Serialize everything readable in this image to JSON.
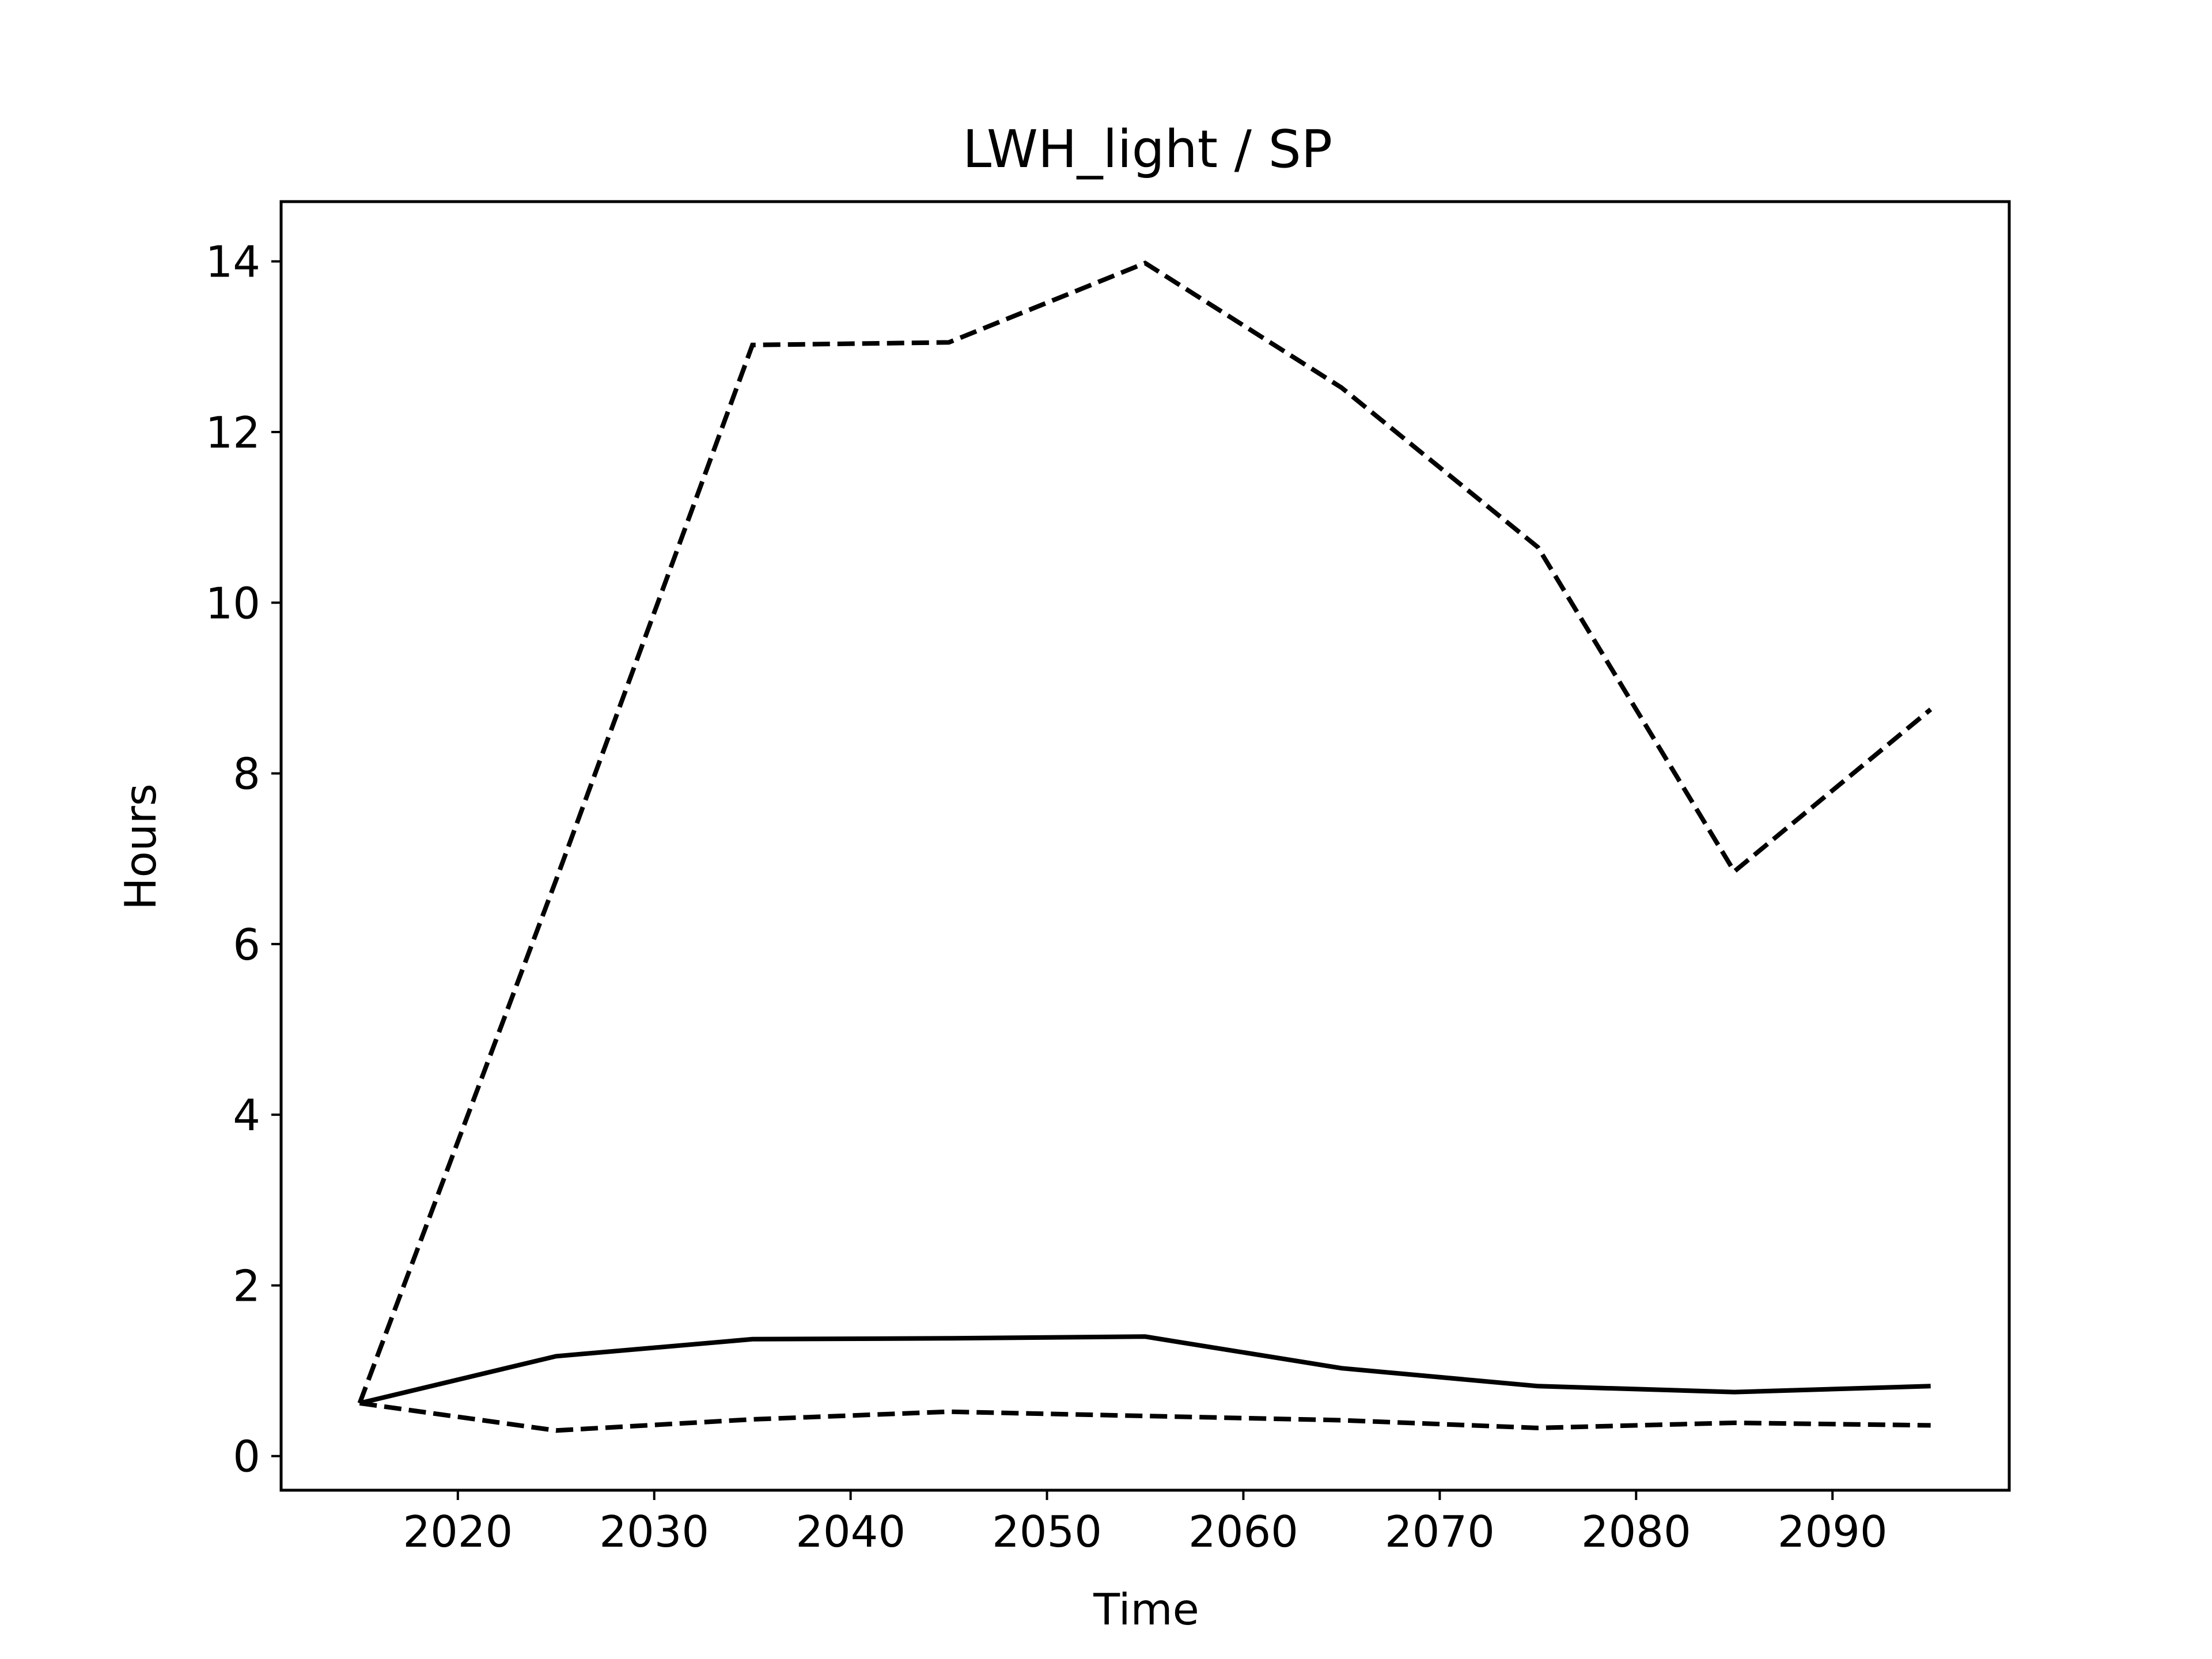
{
  "chart_data": {
    "type": "line",
    "title": "LWH_light / SP",
    "xlabel": "Time",
    "ylabel": "Hours",
    "x": [
      2015,
      2025,
      2035,
      2045,
      2055,
      2065,
      2075,
      2085,
      2095
    ],
    "xlim": [
      2011,
      2099
    ],
    "ylim": [
      -0.4,
      14.7
    ],
    "xticks": [
      2020,
      2030,
      2040,
      2050,
      2060,
      2070,
      2080,
      2090
    ],
    "yticks": [
      0,
      2,
      4,
      6,
      8,
      10,
      12,
      14
    ],
    "grid": false,
    "series": [
      {
        "style": "dashed",
        "color": "#000000",
        "values": [
          0.62,
          6.75,
          13.02,
          13.05,
          13.98,
          12.52,
          10.65,
          6.85,
          8.75
        ]
      },
      {
        "style": "solid",
        "color": "#000000",
        "values": [
          0.62,
          1.17,
          1.37,
          1.38,
          1.4,
          1.03,
          0.82,
          0.75,
          0.82
        ]
      },
      {
        "style": "dashed",
        "color": "#000000",
        "values": [
          0.62,
          0.3,
          0.43,
          0.52,
          0.47,
          0.42,
          0.33,
          0.39,
          0.36
        ]
      }
    ]
  }
}
